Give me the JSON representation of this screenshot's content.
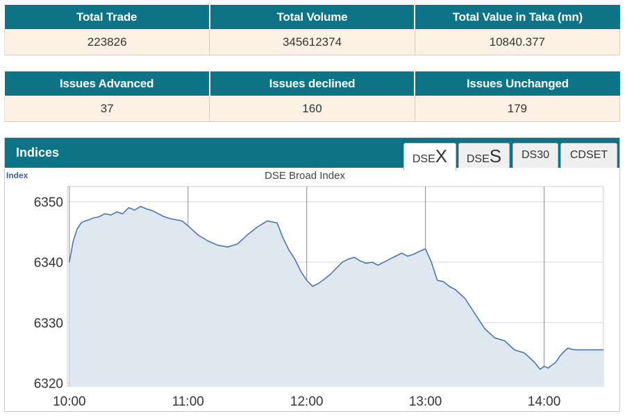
{
  "summary_top": {
    "headers": [
      "Total Trade",
      "Total Volume",
      "Total Value in Taka (mn)"
    ],
    "values": [
      "223826",
      "345612374",
      "10840.377"
    ]
  },
  "summary_bottom": {
    "headers": [
      "Issues Advanced",
      "Issues declined",
      "Issues Unchanged"
    ],
    "values": [
      "37",
      "160",
      "179"
    ]
  },
  "indices": {
    "title": "Indices",
    "tabs": [
      {
        "prefix": "DSE",
        "suffix": "X",
        "active": true
      },
      {
        "prefix": "DSE",
        "suffix": "S",
        "active": false
      },
      {
        "label": "DS30",
        "active": false
      },
      {
        "label": "CDSET",
        "active": false
      }
    ]
  },
  "colors": {
    "header_bg": "#0d7386",
    "value_bg": "#fdf1e6",
    "line": "#4a76a8",
    "area": "#dfe7f1"
  },
  "chart_data": {
    "type": "area",
    "title": "DSE Broad Index",
    "ylabel": "Index",
    "xlabel": "",
    "x_ticks": [
      "10:00",
      "11:00",
      "12:00",
      "13:00",
      "14:00"
    ],
    "y_ticks": [
      6320,
      6330,
      6340,
      6350
    ],
    "xlim": [
      "09:59",
      "14:30"
    ],
    "ylim": [
      6319.5,
      6352.5
    ],
    "grid": true,
    "series": [
      {
        "x": [
          "10:00",
          "10:02",
          "10:04",
          "10:06",
          "10:08",
          "10:10",
          "10:12",
          "10:15",
          "10:18",
          "10:21",
          "10:24",
          "10:27",
          "10:30",
          "10:33",
          "10:36",
          "10:39",
          "10:42",
          "10:45",
          "10:48",
          "10:51",
          "10:54",
          "10:57",
          "11:00",
          "11:05",
          "11:10",
          "11:15",
          "11:20",
          "11:25",
          "11:30",
          "11:35",
          "11:40",
          "11:45",
          "11:48",
          "11:51",
          "11:54",
          "11:57",
          "12:00",
          "12:03",
          "12:06",
          "12:09",
          "12:12",
          "12:15",
          "12:18",
          "12:21",
          "12:24",
          "12:27",
          "12:30",
          "12:33",
          "12:36",
          "12:39",
          "12:42",
          "12:45",
          "12:48",
          "12:51",
          "12:54",
          "12:57",
          "13:00",
          "13:03",
          "13:06",
          "13:09",
          "13:12",
          "13:15",
          "13:20",
          "13:25",
          "13:30",
          "13:35",
          "13:40",
          "13:45",
          "13:50",
          "13:55",
          "13:58",
          "14:00",
          "14:02",
          "14:04",
          "14:06",
          "14:08",
          "14:10",
          "14:12",
          "14:14",
          "14:16",
          "14:18",
          "14:20",
          "14:25",
          "14:30"
        ],
        "values": [
          6340.0,
          6343.5,
          6345.5,
          6346.5,
          6346.8,
          6347.0,
          6347.3,
          6347.5,
          6348.0,
          6347.8,
          6348.3,
          6348.0,
          6349.0,
          6348.6,
          6349.2,
          6348.8,
          6348.5,
          6348.0,
          6347.5,
          6347.2,
          6347.0,
          6346.8,
          6346.0,
          6344.5,
          6343.5,
          6342.8,
          6342.5,
          6343.0,
          6344.5,
          6345.8,
          6346.8,
          6346.5,
          6344.0,
          6342.0,
          6340.5,
          6338.5,
          6337.0,
          6336.0,
          6336.5,
          6337.2,
          6338.0,
          6339.0,
          6340.0,
          6340.5,
          6340.8,
          6340.2,
          6339.8,
          6340.0,
          6339.5,
          6340.0,
          6340.5,
          6341.0,
          6341.5,
          6341.0,
          6341.3,
          6341.8,
          6342.2,
          6340.0,
          6337.0,
          6336.8,
          6336.0,
          6335.5,
          6334.0,
          6331.5,
          6329.0,
          6327.5,
          6327.0,
          6325.5,
          6325.0,
          6323.5,
          6322.3,
          6322.8,
          6322.5,
          6323.0,
          6323.5,
          6324.5,
          6325.2,
          6325.8,
          6325.6,
          6325.5,
          6325.5,
          6325.5,
          6325.5,
          6325.5
        ]
      }
    ]
  }
}
